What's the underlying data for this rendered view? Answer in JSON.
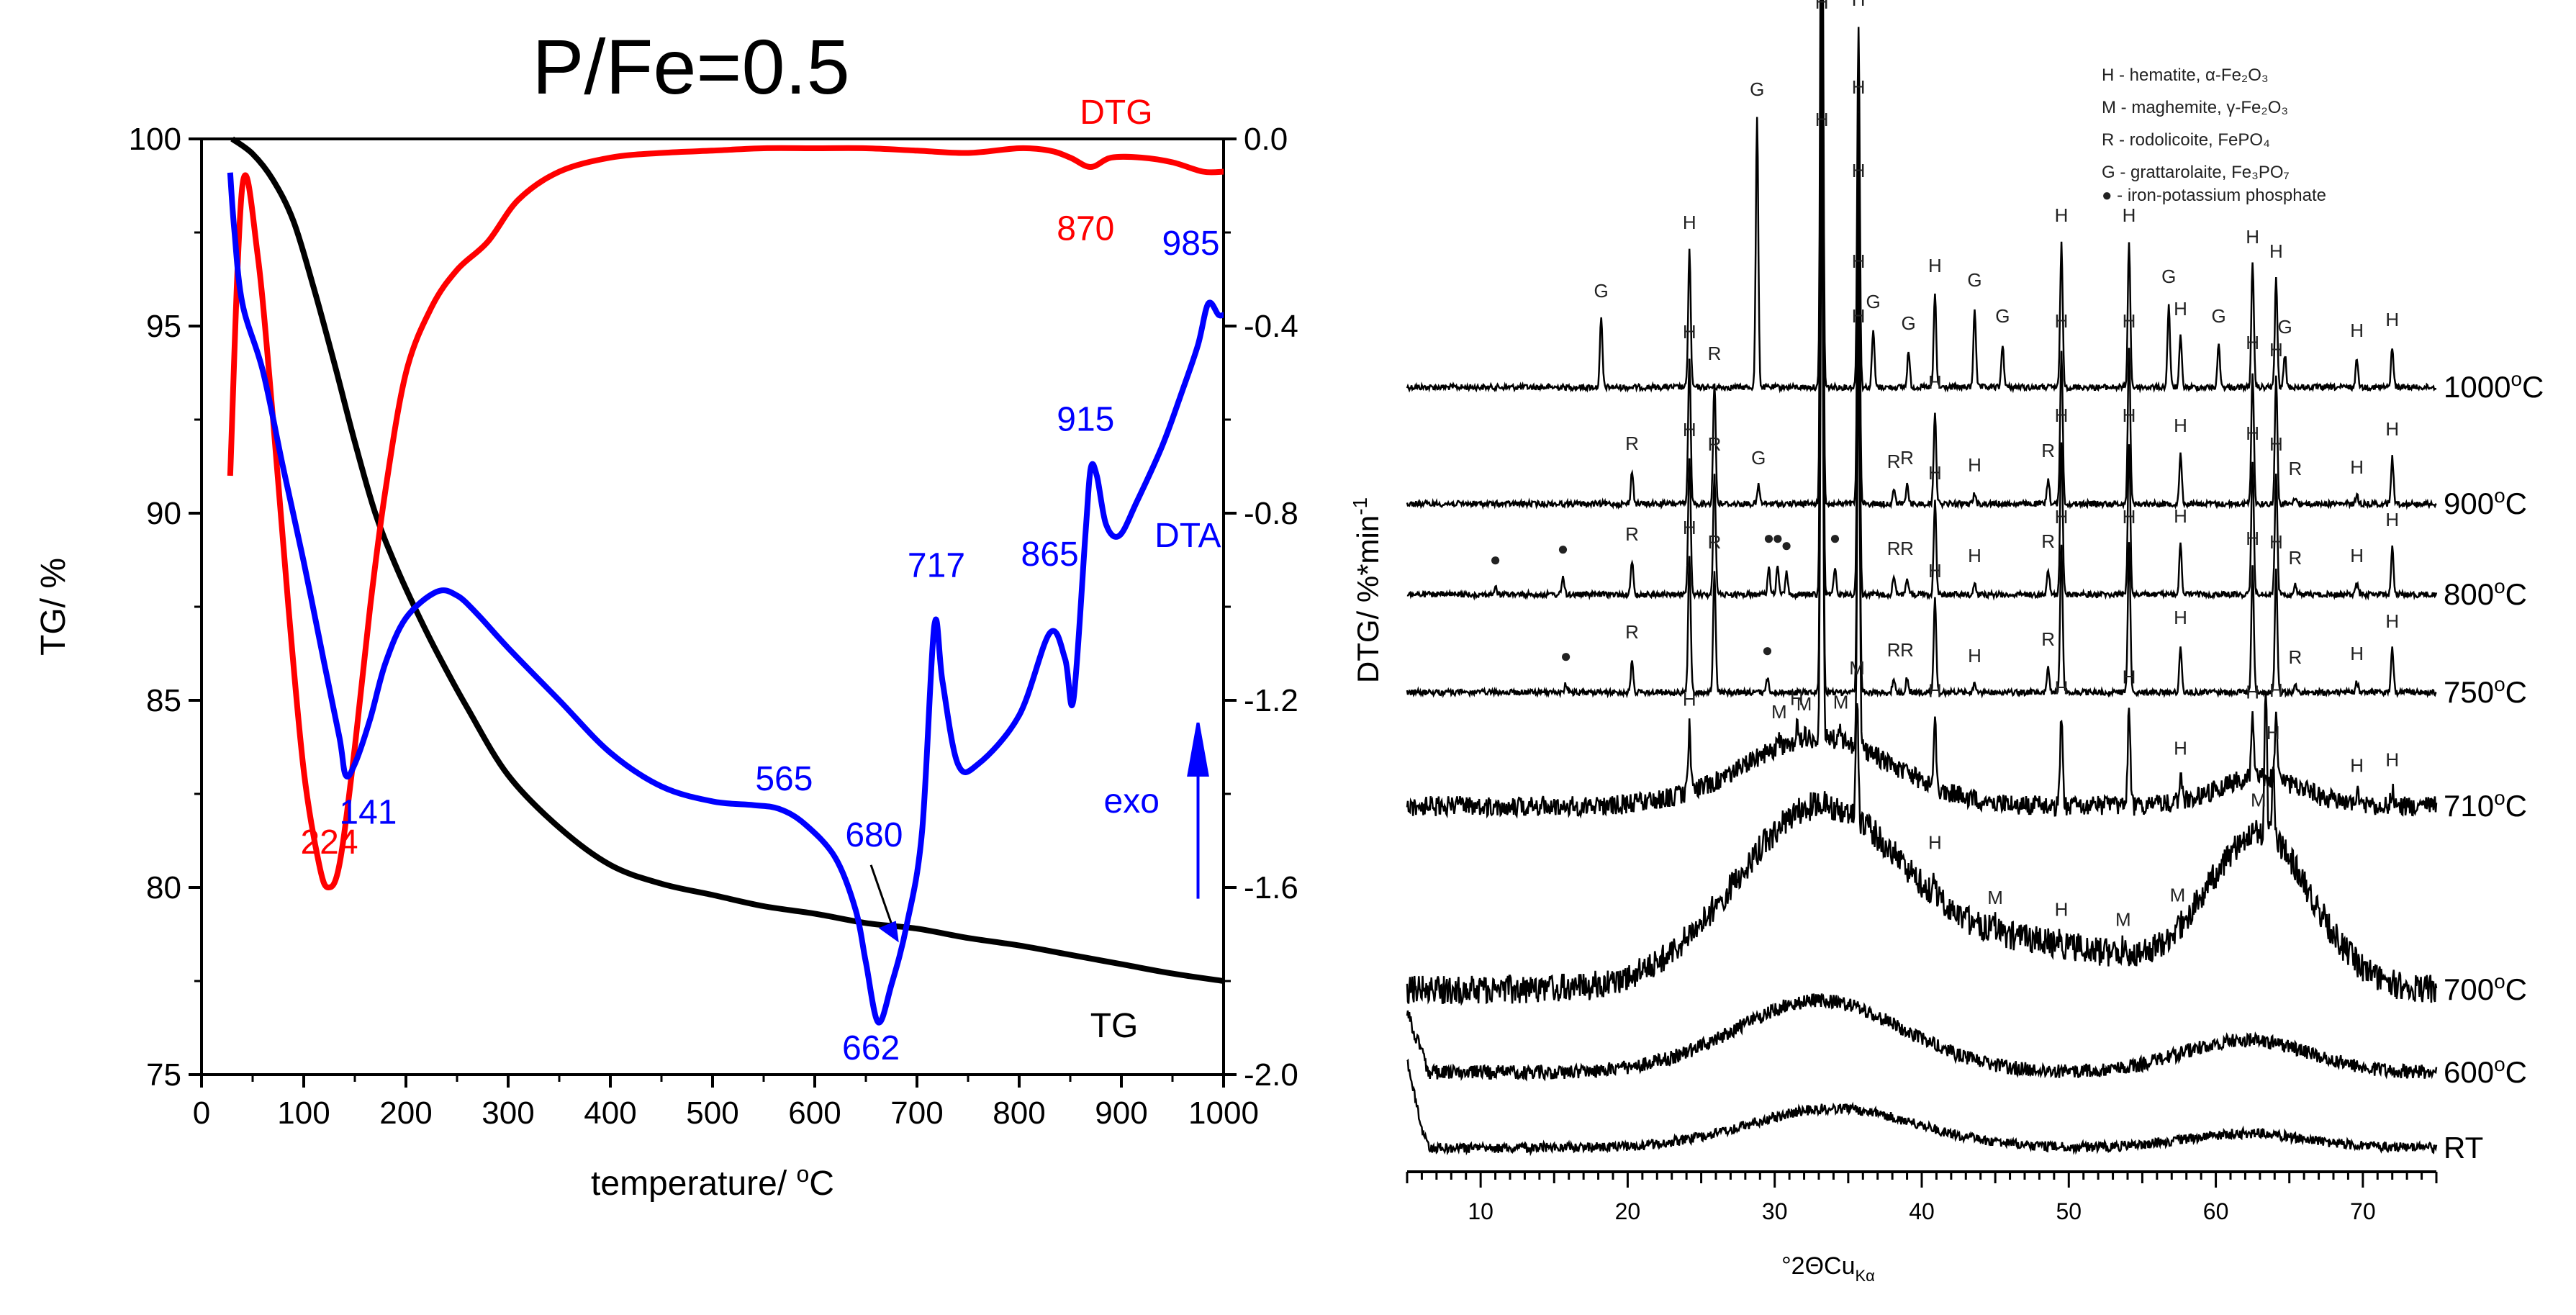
{
  "chart_data": [
    {
      "type": "line",
      "title": "P/Fe=0.5",
      "xlabel": "temperature/ °C",
      "xlabel_parts": [
        "temperature/ ",
        "o",
        "C"
      ],
      "ylabel": "TG/ %",
      "y2label": "DTG/ %*min⁻¹",
      "y2label_parts": [
        "DTG/ %*min",
        "-1"
      ],
      "xlim": [
        0,
        1000
      ],
      "ylim": [
        75,
        100
      ],
      "y2lim": [
        -2.0,
        0.0
      ],
      "x_ticks": [
        "0",
        "100",
        "200",
        "300",
        "400",
        "500",
        "600",
        "700",
        "800",
        "900",
        "1000"
      ],
      "y_ticks": [
        "75",
        "80",
        "85",
        "90",
        "95",
        "100"
      ],
      "y2_ticks": [
        "-2.0",
        "-1.6",
        "-1.2",
        "-0.8",
        "-0.4",
        "0.0"
      ],
      "series": [
        {
          "name": "TG",
          "color": "#000000",
          "axis": "left",
          "x": [
            30,
            50,
            70,
            90,
            110,
            130,
            150,
            170,
            190,
            210,
            230,
            260,
            300,
            350,
            400,
            450,
            500,
            550,
            600,
            650,
            700,
            750,
            800,
            850,
            900,
            950,
            1000
          ],
          "y": [
            100,
            99.6,
            98.9,
            97.8,
            96.0,
            94.0,
            91.9,
            90.0,
            88.6,
            87.4,
            86.3,
            84.8,
            83.0,
            81.6,
            80.6,
            80.1,
            79.8,
            79.5,
            79.3,
            79.05,
            78.9,
            78.65,
            78.45,
            78.2,
            77.95,
            77.7,
            77.5
          ]
        },
        {
          "name": "DTG",
          "color": "#ff0000",
          "axis": "right",
          "x": [
            28,
            40,
            55,
            70,
            85,
            100,
            115,
            124,
            135,
            150,
            165,
            180,
            200,
            225,
            250,
            280,
            310,
            350,
            400,
            450,
            500,
            550,
            600,
            650,
            700,
            750,
            800,
            830,
            850,
            870,
            890,
            920,
            950,
            980,
            1000
          ],
          "y": [
            -0.72,
            -0.1,
            -0.25,
            -0.6,
            -1.0,
            -1.35,
            -1.55,
            -1.6,
            -1.55,
            -1.3,
            -1.0,
            -0.75,
            -0.5,
            -0.36,
            -0.28,
            -0.22,
            -0.13,
            -0.07,
            -0.04,
            -0.03,
            -0.025,
            -0.02,
            -0.02,
            -0.02,
            -0.025,
            -0.03,
            -0.02,
            -0.025,
            -0.04,
            -0.06,
            -0.04,
            -0.04,
            -0.05,
            -0.07,
            -0.07
          ]
        },
        {
          "name": "DTA",
          "color": "#0000ff",
          "axis": "none",
          "x": [
            28,
            32,
            40,
            60,
            80,
            100,
            120,
            135,
            141,
            150,
            165,
            180,
            200,
            230,
            250,
            270,
            300,
            350,
            400,
            450,
            500,
            540,
            565,
            590,
            620,
            640,
            650,
            662,
            675,
            690,
            705,
            717,
            725,
            740,
            760,
            800,
            830,
            845,
            853,
            865,
            870,
            876,
            885,
            898,
            915,
            940,
            960,
            975,
            985,
            995,
            1000
          ],
          "y": [
            99.1,
            97.6,
            95.6,
            93.8,
            91.2,
            88.7,
            86.0,
            84.0,
            83.0,
            83.3,
            84.5,
            86.0,
            87.2,
            87.9,
            87.8,
            87.3,
            86.4,
            85.0,
            83.6,
            82.7,
            82.3,
            82.2,
            82.1,
            81.7,
            80.8,
            79.4,
            78.0,
            76.4,
            77.4,
            79.0,
            81.5,
            87.0,
            85.5,
            83.3,
            83.3,
            84.6,
            86.8,
            86.1,
            85.0,
            89.5,
            91.2,
            91.0,
            89.7,
            89.4,
            90.3,
            91.8,
            93.3,
            94.5,
            95.6,
            95.3,
            95.3
          ]
        }
      ],
      "labels": {
        "dtg": "DTG",
        "dta": "DTA",
        "tg": "TG",
        "exo": "exo",
        "p224": "224",
        "p141": "141",
        "p870": "870",
        "p985": "985",
        "p915": "915",
        "p865": "865",
        "p717": "717",
        "p680": "680",
        "p565": "565",
        "p662": "662"
      }
    },
    {
      "type": "line",
      "subtype": "xrd_stacked",
      "xlabel": "°2ΘCu Kα",
      "xlabel_parts": [
        "°2ΘCu",
        "Kα"
      ],
      "xlim": [
        5,
        75
      ],
      "x_ticks": [
        "10",
        "20",
        "30",
        "40",
        "50",
        "60",
        "70"
      ],
      "legend": [
        "H - hematite, α-Fe₂O₃",
        "M - maghemite, γ-Fe₂O₃",
        "R - rodolicoite, FePO₄",
        "G - grattarolaite, Fe₃PO₇",
        "● - iron-potassium phosphate"
      ],
      "patterns": [
        {
          "label": "1000°C",
          "label_parts": [
            "1000",
            "o",
            "C"
          ],
          "peaks": [
            [
              18.2,
              "G"
            ],
            [
              24.2,
              "H"
            ],
            [
              28.8,
              "G"
            ],
            [
              33.2,
              "H"
            ],
            [
              35.7,
              "H"
            ],
            [
              36.7,
              "G"
            ],
            [
              39.1,
              "G"
            ],
            [
              40.9,
              "H"
            ],
            [
              43.6,
              "G"
            ],
            [
              45.5,
              "G"
            ],
            [
              49.5,
              "H"
            ],
            [
              54.1,
              "H"
            ],
            [
              56.8,
              "G"
            ],
            [
              57.6,
              "H"
            ],
            [
              60.2,
              "G"
            ],
            [
              62.5,
              "H"
            ],
            [
              64.1,
              "H"
            ],
            [
              64.7,
              "G"
            ],
            [
              69.6,
              "H"
            ],
            [
              72.0,
              "H"
            ]
          ]
        },
        {
          "label": "900°C",
          "label_parts": [
            "900",
            "o",
            "C"
          ],
          "peaks": [
            [
              20.3,
              "R"
            ],
            [
              24.2,
              "H"
            ],
            [
              25.9,
              "R"
            ],
            [
              28.9,
              "G"
            ],
            [
              33.2,
              "H"
            ],
            [
              35.7,
              "H"
            ],
            [
              38.1,
              "R"
            ],
            [
              39.0,
              "R"
            ],
            [
              40.9,
              "H"
            ],
            [
              43.6,
              "H"
            ],
            [
              48.6,
              "R"
            ],
            [
              49.5,
              "H"
            ],
            [
              54.1,
              "H"
            ],
            [
              57.6,
              "H"
            ],
            [
              62.5,
              "H"
            ],
            [
              64.1,
              "H"
            ],
            [
              65.4,
              "R"
            ],
            [
              69.6,
              "H"
            ],
            [
              72.0,
              "H"
            ]
          ]
        },
        {
          "label": "800°C",
          "label_parts": [
            "800",
            "o",
            "C"
          ],
          "peaks": [
            [
              11.0,
              "●"
            ],
            [
              15.6,
              "●"
            ],
            [
              20.3,
              "R"
            ],
            [
              24.2,
              "H"
            ],
            [
              25.9,
              "R"
            ],
            [
              29.6,
              "●"
            ],
            [
              30.2,
              "●"
            ],
            [
              30.8,
              "●"
            ],
            [
              33.2,
              "H"
            ],
            [
              34.1,
              "●"
            ],
            [
              35.7,
              "H"
            ],
            [
              38.1,
              "R"
            ],
            [
              39.0,
              "R"
            ],
            [
              40.9,
              "H"
            ],
            [
              43.6,
              "H"
            ],
            [
              48.6,
              "R"
            ],
            [
              49.5,
              "H"
            ],
            [
              54.1,
              "H"
            ],
            [
              57.6,
              "H"
            ],
            [
              62.5,
              "H"
            ],
            [
              64.1,
              "H"
            ],
            [
              65.4,
              "R"
            ],
            [
              69.6,
              "H"
            ],
            [
              72.0,
              "H"
            ]
          ]
        },
        {
          "label": "750°C",
          "label_parts": [
            "750",
            "o",
            "C"
          ],
          "peaks": [
            [
              15.8,
              "●"
            ],
            [
              20.3,
              "R"
            ],
            [
              24.2,
              "H"
            ],
            [
              25.9,
              "R"
            ],
            [
              29.5,
              "●"
            ],
            [
              33.2,
              "H"
            ],
            [
              35.7,
              "H"
            ],
            [
              38.1,
              "R"
            ],
            [
              39.0,
              "R"
            ],
            [
              40.9,
              "H"
            ],
            [
              43.6,
              "H"
            ],
            [
              48.6,
              "R"
            ],
            [
              49.5,
              "H"
            ],
            [
              54.1,
              "H"
            ],
            [
              57.6,
              "H"
            ],
            [
              62.5,
              "H"
            ],
            [
              64.1,
              "H"
            ],
            [
              65.4,
              "R"
            ],
            [
              69.6,
              "H"
            ],
            [
              72.0,
              "H"
            ]
          ]
        },
        {
          "label": "710°C",
          "label_parts": [
            "710",
            "o",
            "C"
          ],
          "peaks": [
            [
              24.2,
              "H"
            ],
            [
              30.3,
              "M"
            ],
            [
              31.5,
              "H"
            ],
            [
              32.0,
              "M"
            ],
            [
              33.2,
              "H"
            ],
            [
              34.5,
              "M"
            ],
            [
              35.7,
              "H"
            ],
            [
              40.9,
              "H"
            ],
            [
              49.5,
              "H"
            ],
            [
              54.1,
              "H"
            ],
            [
              57.6,
              "H"
            ],
            [
              62.5,
              "H"
            ],
            [
              64.1,
              "H"
            ],
            [
              69.6,
              "H"
            ],
            [
              72.0,
              "H"
            ]
          ]
        },
        {
          "label": "700°C",
          "label_parts": [
            "700",
            "o",
            "C"
          ],
          "peaks": [
            [
              35.6,
              "M"
            ],
            [
              40.9,
              "H"
            ],
            [
              45.0,
              "M"
            ],
            [
              49.5,
              "H"
            ],
            [
              53.7,
              "M"
            ],
            [
              57.4,
              "M"
            ],
            [
              62.9,
              "M"
            ],
            [
              63.9,
              "H"
            ]
          ]
        },
        {
          "label": "600°C",
          "label_parts": [
            "600",
            "o",
            "C"
          ],
          "peaks": []
        },
        {
          "label": "RT",
          "label_parts": [
            "RT",
            "",
            ""
          ],
          "peaks": []
        }
      ]
    }
  ]
}
